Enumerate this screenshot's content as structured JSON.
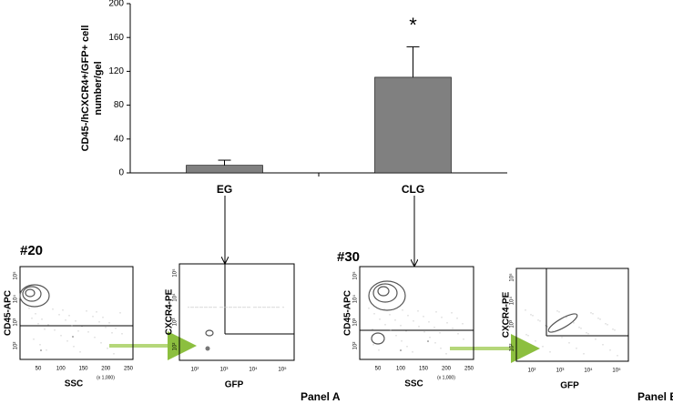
{
  "chart_data": {
    "type": "bar",
    "ylabel": [
      "CD45-/hCXCR4+/GFP+ cell",
      "number/gel"
    ],
    "categories": [
      "EG",
      "CLG"
    ],
    "values": [
      9,
      113
    ],
    "errors": [
      6,
      36
    ],
    "color": "#808080",
    "ylim": [
      0,
      200
    ],
    "yticks": [
      0,
      40,
      80,
      120,
      160,
      200
    ],
    "annotation": "*"
  },
  "panels": [
    {
      "label": "#20",
      "caption": "Panel A",
      "plots": [
        {
          "ylabel": "CD45-APC",
          "xlabel": "SSC",
          "xticks": [
            "50",
            "100",
            "150",
            "200",
            "250"
          ],
          "x_note": "(x 1,000)",
          "yticks": [
            "10²",
            "10³",
            "10⁴",
            "10⁵"
          ]
        },
        {
          "ylabel": "CXCR4-PE",
          "xlabel": "GFP",
          "xticks": [
            "10²",
            "10³",
            "10⁴",
            "10⁵"
          ],
          "yticks": [
            "10²",
            "10³",
            "10⁴",
            "10⁵"
          ]
        }
      ]
    },
    {
      "label": "#30",
      "caption": "Panel B",
      "plots": [
        {
          "ylabel": "CD45-APC",
          "xlabel": "SSC",
          "xticks": [
            "50",
            "100",
            "150",
            "200",
            "250"
          ],
          "x_note": "(x 1,000)",
          "yticks": [
            "10²",
            "10³",
            "10⁴",
            "10⁵"
          ]
        },
        {
          "ylabel": "CXCR4-PE",
          "xlabel": "GFP",
          "xticks": [
            "10²",
            "10³",
            "10⁴",
            "10⁵"
          ],
          "yticks": [
            "10²",
            "10³",
            "10⁴",
            "10⁵"
          ]
        }
      ]
    }
  ]
}
